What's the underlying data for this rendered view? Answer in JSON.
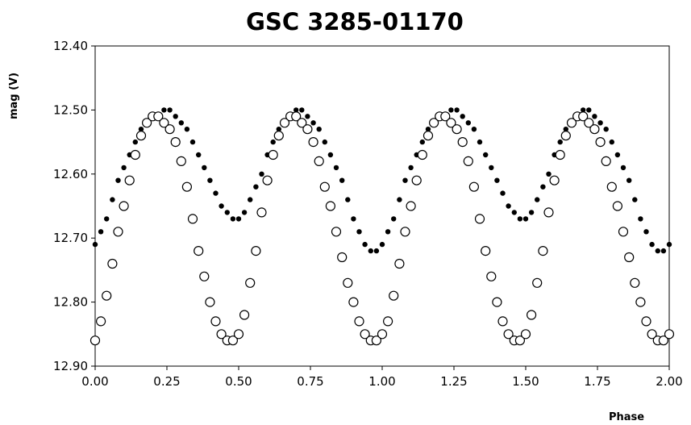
{
  "chart_data": {
    "type": "scatter",
    "title": "GSC 3285-01170",
    "xlabel": "Phase",
    "ylabel": "mag (V)",
    "xlim": [
      0.0,
      2.0
    ],
    "ylim": [
      12.4,
      12.9
    ],
    "y_inverted": true,
    "grid": false,
    "x_ticks": [
      "0.00",
      "0.25",
      "0.50",
      "0.75",
      "1.00",
      "1.25",
      "1.50",
      "1.75",
      "2.00"
    ],
    "y_ticks": [
      "12.40",
      "12.50",
      "12.60",
      "12.70",
      "12.80",
      "12.90"
    ],
    "series": [
      {
        "marker": "filled-dot",
        "color": "#000000",
        "x": [
          0.0,
          0.02,
          0.04,
          0.06,
          0.08,
          0.1,
          0.12,
          0.14,
          0.16,
          0.18,
          0.2,
          0.22,
          0.24,
          0.26,
          0.28,
          0.3,
          0.32,
          0.34,
          0.36,
          0.38,
          0.4,
          0.42,
          0.44,
          0.46,
          0.48,
          0.5,
          0.52,
          0.54,
          0.56,
          0.58,
          0.6,
          0.62,
          0.64,
          0.66,
          0.68,
          0.7,
          0.72,
          0.74,
          0.76,
          0.78,
          0.8,
          0.82,
          0.84,
          0.86,
          0.88,
          0.9,
          0.92,
          0.94,
          0.96,
          0.98,
          1.0,
          1.02,
          1.04,
          1.06,
          1.08,
          1.1,
          1.12,
          1.14,
          1.16,
          1.18,
          1.2,
          1.22,
          1.24,
          1.26,
          1.28,
          1.3,
          1.32,
          1.34,
          1.36,
          1.38,
          1.4,
          1.42,
          1.44,
          1.46,
          1.48,
          1.5,
          1.52,
          1.54,
          1.56,
          1.58,
          1.6,
          1.62,
          1.64,
          1.66,
          1.68,
          1.7,
          1.72,
          1.74,
          1.76,
          1.78,
          1.8,
          1.82,
          1.84,
          1.86,
          1.88,
          1.9,
          1.92,
          1.94,
          1.96,
          1.98,
          2.0
        ],
        "y": [
          12.71,
          12.69,
          12.67,
          12.64,
          12.61,
          12.59,
          12.57,
          12.55,
          12.53,
          12.52,
          12.51,
          12.51,
          12.5,
          12.5,
          12.51,
          12.52,
          12.53,
          12.55,
          12.57,
          12.59,
          12.61,
          12.63,
          12.65,
          12.66,
          12.67,
          12.67,
          12.66,
          12.64,
          12.62,
          12.6,
          12.57,
          12.55,
          12.53,
          12.52,
          12.51,
          12.5,
          12.5,
          12.51,
          12.52,
          12.53,
          12.55,
          12.57,
          12.59,
          12.61,
          12.64,
          12.67,
          12.69,
          12.71,
          12.72,
          12.72,
          12.71,
          12.69,
          12.67,
          12.64,
          12.61,
          12.59,
          12.57,
          12.55,
          12.53,
          12.52,
          12.51,
          12.51,
          12.5,
          12.5,
          12.51,
          12.52,
          12.53,
          12.55,
          12.57,
          12.59,
          12.61,
          12.63,
          12.65,
          12.66,
          12.67,
          12.67,
          12.66,
          12.64,
          12.62,
          12.6,
          12.57,
          12.55,
          12.53,
          12.52,
          12.51,
          12.5,
          12.5,
          12.51,
          12.52,
          12.53,
          12.55,
          12.57,
          12.59,
          12.61,
          12.64,
          12.67,
          12.69,
          12.71,
          12.72,
          12.72,
          12.71
        ]
      },
      {
        "marker": "open-circle",
        "color": "#000000",
        "fill": "#ffffff",
        "x": [
          0.0,
          0.02,
          0.04,
          0.06,
          0.08,
          0.1,
          0.12,
          0.14,
          0.16,
          0.18,
          0.2,
          0.22,
          0.24,
          0.26,
          0.28,
          0.3,
          0.32,
          0.34,
          0.36,
          0.38,
          0.4,
          0.42,
          0.44,
          0.46,
          0.48,
          0.5,
          0.52,
          0.54,
          0.56,
          0.58,
          0.6,
          0.62,
          0.64,
          0.66,
          0.68,
          0.7,
          0.72,
          0.74,
          0.76,
          0.78,
          0.8,
          0.82,
          0.84,
          0.86,
          0.88,
          0.9,
          0.92,
          0.94,
          0.96,
          0.98,
          1.0,
          1.02,
          1.04,
          1.06,
          1.08,
          1.1,
          1.12,
          1.14,
          1.16,
          1.18,
          1.2,
          1.22,
          1.24,
          1.26,
          1.28,
          1.3,
          1.32,
          1.34,
          1.36,
          1.38,
          1.4,
          1.42,
          1.44,
          1.46,
          1.48,
          1.5,
          1.52,
          1.54,
          1.56,
          1.58,
          1.6,
          1.62,
          1.64,
          1.66,
          1.68,
          1.7,
          1.72,
          1.74,
          1.76,
          1.78,
          1.8,
          1.82,
          1.84,
          1.86,
          1.88,
          1.9,
          1.92,
          1.94,
          1.96,
          1.98,
          2.0
        ],
        "y": [
          12.86,
          12.83,
          12.79,
          12.74,
          12.69,
          12.65,
          12.61,
          12.57,
          12.54,
          12.52,
          12.51,
          12.51,
          12.52,
          12.53,
          12.55,
          12.58,
          12.62,
          12.67,
          12.72,
          12.76,
          12.8,
          12.83,
          12.85,
          12.86,
          12.86,
          12.85,
          12.82,
          12.77,
          12.72,
          12.66,
          12.61,
          12.57,
          12.54,
          12.52,
          12.51,
          12.51,
          12.52,
          12.53,
          12.55,
          12.58,
          12.62,
          12.65,
          12.69,
          12.73,
          12.77,
          12.8,
          12.83,
          12.85,
          12.86,
          12.86,
          12.85,
          12.83,
          12.79,
          12.74,
          12.69,
          12.65,
          12.61,
          12.57,
          12.54,
          12.52,
          12.51,
          12.51,
          12.52,
          12.53,
          12.55,
          12.58,
          12.62,
          12.67,
          12.72,
          12.76,
          12.8,
          12.83,
          12.85,
          12.86,
          12.86,
          12.85,
          12.82,
          12.77,
          12.72,
          12.66,
          12.61,
          12.57,
          12.54,
          12.52,
          12.51,
          12.51,
          12.52,
          12.53,
          12.55,
          12.58,
          12.62,
          12.65,
          12.69,
          12.73,
          12.77,
          12.8,
          12.83,
          12.85,
          12.86,
          12.86,
          12.85
        ]
      }
    ]
  }
}
